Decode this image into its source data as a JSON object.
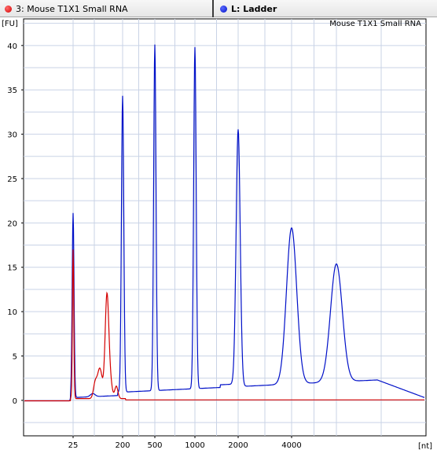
{
  "legend": {
    "sample_label": "3: Mouse T1X1 Small RNA",
    "sample_color": "#d40000",
    "ladder_label": "L: Ladder",
    "ladder_color": "#0010c8"
  },
  "chart_data": {
    "type": "line",
    "title": "Mouse T1X1 Small RNA",
    "ylabel": "[FU]",
    "xlabel": "[nt]",
    "ylim": [
      -4,
      43
    ],
    "yticks": [
      0,
      5,
      10,
      15,
      20,
      25,
      30,
      35,
      40
    ],
    "xticks": [
      {
        "label": "25",
        "pos": 25
      },
      {
        "label": "200",
        "pos": 200
      },
      {
        "label": "500",
        "pos": 500
      },
      {
        "label": "1000",
        "pos": 1000
      },
      {
        "label": "2000",
        "pos": 2000
      },
      {
        "label": "4000",
        "pos": 4000
      }
    ],
    "grid": true,
    "legend_position": "top",
    "series": [
      {
        "name": "L: Ladder",
        "color": "#0010c8",
        "peaks": [
          {
            "x": 25,
            "height": 20.8
          },
          {
            "x": 200,
            "height": 33.4
          },
          {
            "x": 500,
            "height": 39
          },
          {
            "x": 1000,
            "height": 38.5
          },
          {
            "x": 2000,
            "height": 29
          },
          {
            "x": 4000,
            "height": 17.6
          },
          {
            "x": 6000,
            "height": 13.3
          }
        ]
      },
      {
        "name": "3: Mouse T1X1 Small RNA",
        "color": "#d40000",
        "peaks": [
          {
            "x": 25,
            "height": 16.8
          },
          {
            "x": 120,
            "height": 12.8
          },
          {
            "x": 100,
            "height": 3.4
          }
        ]
      }
    ]
  }
}
